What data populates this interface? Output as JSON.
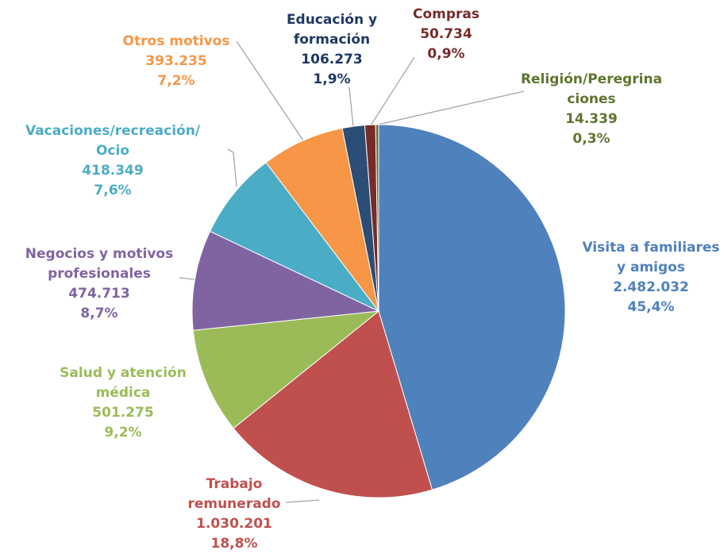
{
  "chart_data": {
    "type": "pie",
    "categories": [
      [
        "Visita a familiares",
        "y amigos"
      ],
      [
        "Trabajo",
        "remunerado"
      ],
      [
        "Salud y atención",
        "médica"
      ],
      [
        "Negocios y motivos",
        "profesionales"
      ],
      [
        "Vacaciones/recreación/",
        "Ocio"
      ],
      [
        "Otros motivos"
      ],
      [
        "Educación y",
        "formación"
      ],
      [
        "Compras"
      ],
      [
        "Religión/Peregrina",
        "ciones"
      ]
    ],
    "values": [
      2482032,
      1030201,
      501275,
      474713,
      418349,
      393235,
      106273,
      50734,
      14339
    ],
    "value_labels": [
      "2.482.032",
      "1.030.201",
      "501.275",
      "474.713",
      "418.349",
      "393.235",
      "106.273",
      "50.734",
      "14.339"
    ],
    "percentages": [
      45.4,
      18.8,
      9.2,
      8.7,
      7.6,
      7.2,
      1.9,
      0.9,
      0.3
    ],
    "percentage_labels": [
      "45,4%",
      "18,8%",
      "9,2%",
      "8,7%",
      "7,6%",
      "7,2%",
      "1,9%",
      "0,9%",
      "0,3%"
    ],
    "colors": [
      "#4f81bd",
      "#c0504d",
      "#9bbb59",
      "#8064a2",
      "#4bacc6",
      "#f79646",
      "#2c4d75",
      "#772c2a",
      "#5f7530"
    ],
    "label_colors": [
      "#4f81bd",
      "#c0504d",
      "#9bbb59",
      "#8064a2",
      "#4bacc6",
      "#f79646",
      "#1f3864",
      "#772c2a",
      "#5f7530"
    ]
  }
}
